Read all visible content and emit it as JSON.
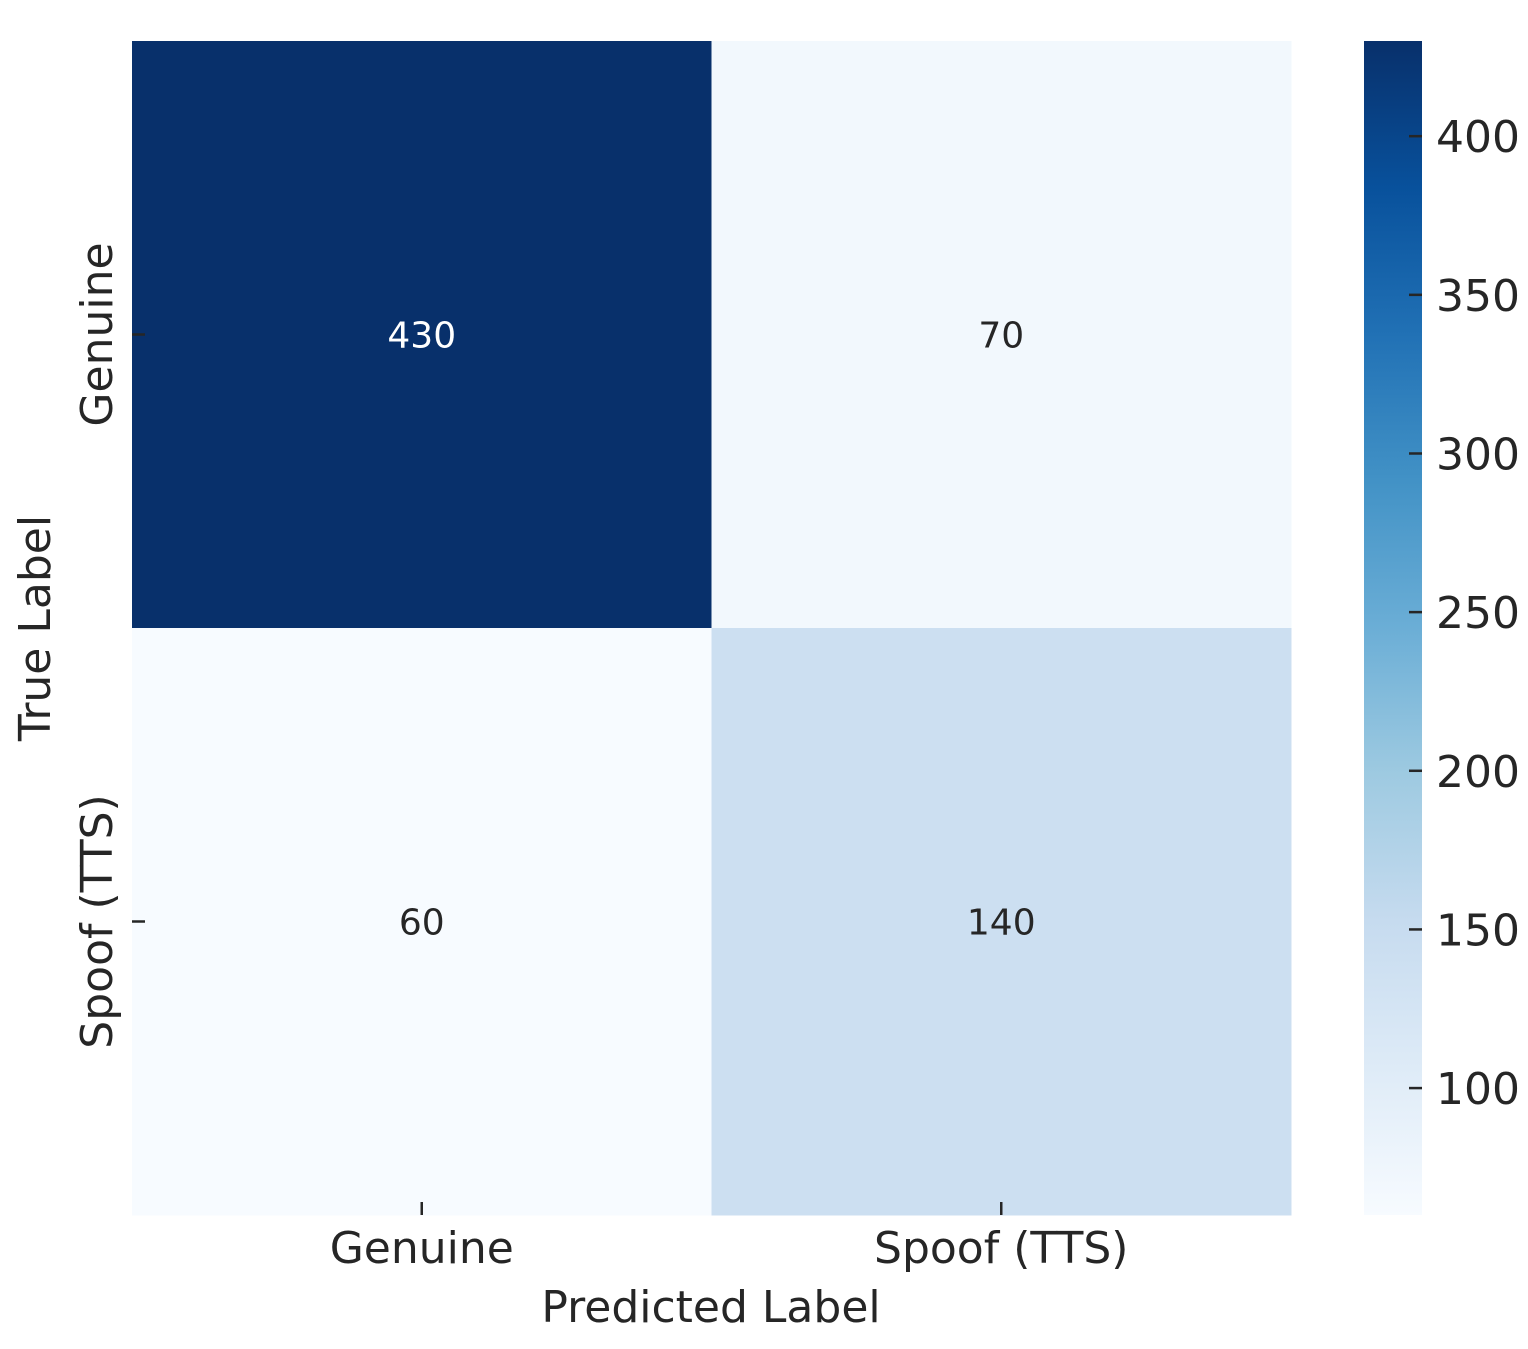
{
  "chart_data": {
    "type": "heatmap",
    "title": "",
    "xlabel": "Predicted Label",
    "ylabel": "True Label",
    "x_categories": [
      "Genuine",
      "Spoof (TTS)"
    ],
    "y_categories": [
      "Genuine",
      "Spoof (TTS)"
    ],
    "values": [
      [
        430,
        70
      ],
      [
        60,
        140
      ]
    ],
    "annotations": true,
    "colormap": "Blues",
    "colorbar": {
      "range": [
        60,
        430
      ],
      "ticks": [
        100,
        150,
        200,
        250,
        300,
        350,
        400
      ],
      "tick_labels": [
        "100",
        "150",
        "200",
        "250",
        "300",
        "350",
        "400"
      ]
    },
    "colors": {
      "low": "#f7fbff",
      "high": "#08306b",
      "text_dark": "#262626",
      "text_light": "#ffffff"
    }
  }
}
